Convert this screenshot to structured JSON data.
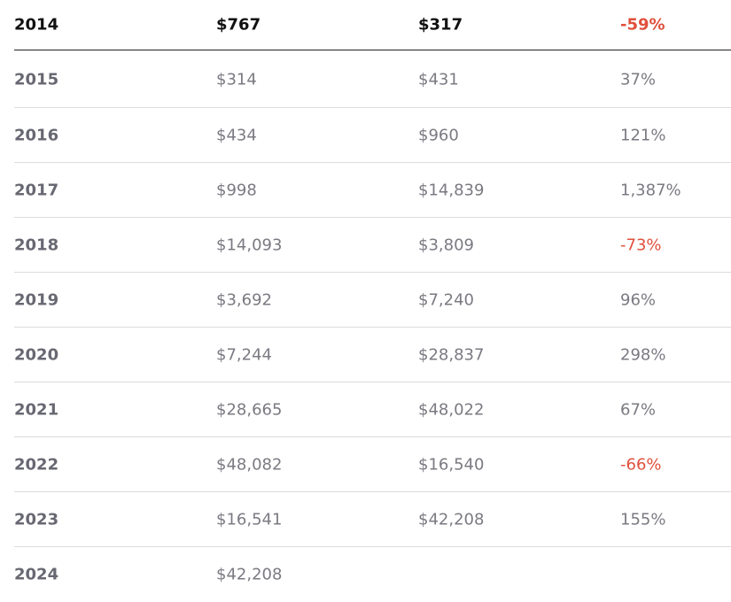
{
  "table": {
    "rows": [
      [
        "2014",
        "$767",
        "$317",
        "-59%"
      ],
      [
        "2015",
        "$314",
        "$431",
        "37%"
      ],
      [
        "2016",
        "$434",
        "$960",
        "121%"
      ],
      [
        "2017",
        "$998",
        "$14,839",
        "1,387%"
      ],
      [
        "2018",
        "$14,093",
        "$3,809",
        "-73%"
      ],
      [
        "2019",
        "$3,692",
        "$7,240",
        "96%"
      ],
      [
        "2020",
        "$7,244",
        "$28,837",
        "298%"
      ],
      [
        "2021",
        "$28,665",
        "$48,022",
        "67%"
      ],
      [
        "2022",
        "$48,082",
        "$16,540",
        "-66%"
      ],
      [
        "2023",
        "$16,541",
        "$42,208",
        "155%"
      ],
      [
        "2024",
        "$42,208"
      ]
    ]
  }
}
